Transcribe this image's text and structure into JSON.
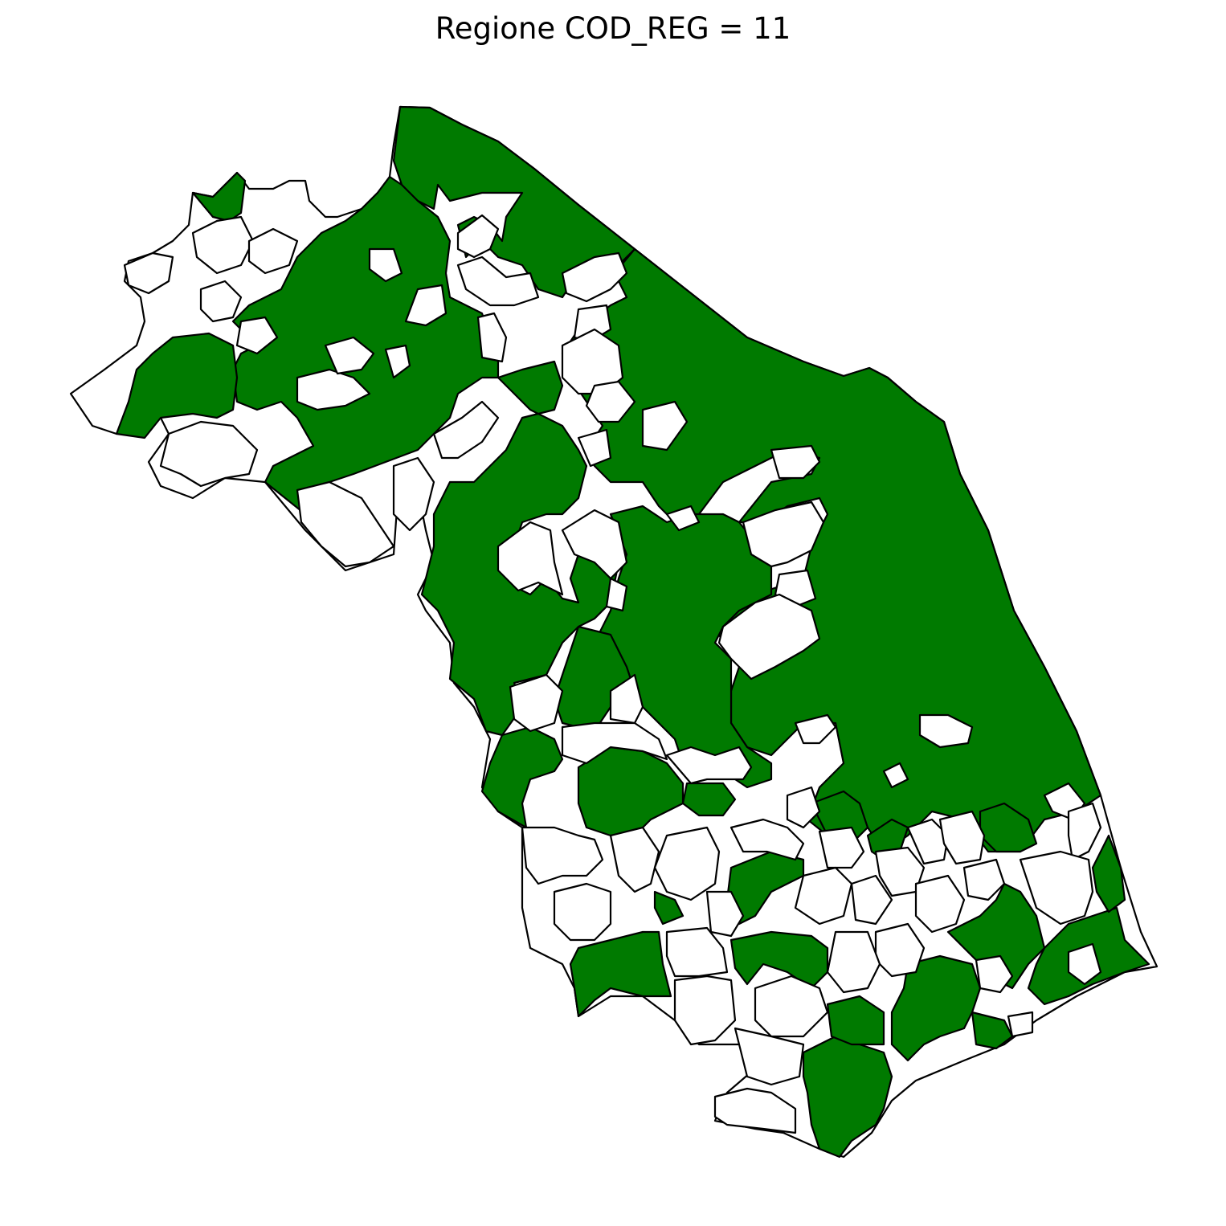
{
  "title": "Regione COD_REG = 11",
  "colors": {
    "highlight": "#007a00",
    "other": "#ffffff",
    "border": "#000000",
    "background": "#ffffff"
  }
}
